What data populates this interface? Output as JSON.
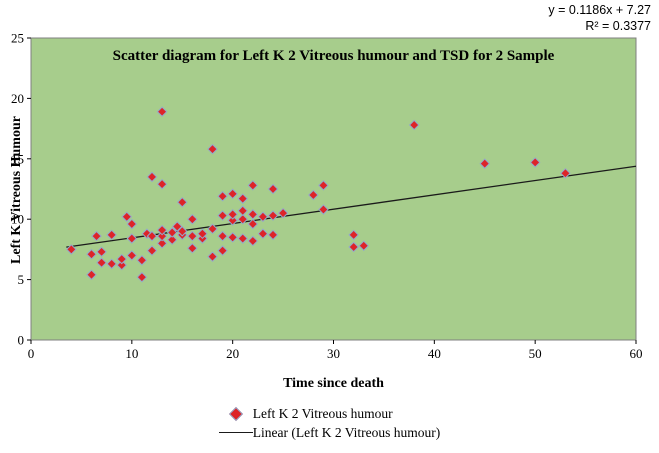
{
  "chart_data": {
    "type": "scatter",
    "title": "Scatter diagram for Left K 2 Vitreous humour and TSD for 2 Sample",
    "xlabel": "Time since death",
    "ylabel": "Left K Vitreous Humour",
    "xlim": [
      0,
      60
    ],
    "ylim": [
      0,
      25
    ],
    "x_ticks": [
      0,
      10,
      20,
      30,
      40,
      50,
      60
    ],
    "y_ticks": [
      0,
      5,
      10,
      15,
      20,
      25
    ],
    "grid": false,
    "legend_position": "bottom",
    "annotation": {
      "equation": "y = 0.1186x + 7.27",
      "r_squared": "R² = 0.3377"
    },
    "legend": [
      "Left K 2 Vitreous humour",
      "Linear (Left K 2 Vitreous humour)"
    ],
    "trendline": {
      "slope": 0.1186,
      "intercept": 7.27,
      "x_start": 3.5,
      "x_end": 60
    },
    "colors": {
      "plot_bg": "#a7cd8c",
      "plot_border": "#7f7f7f",
      "marker_fill": "#dd2428",
      "marker_stroke": "#93a9cc",
      "trendline": "#1a1a1a"
    },
    "points": [
      [
        4,
        7.5
      ],
      [
        6,
        5.4
      ],
      [
        6,
        7.1
      ],
      [
        6.5,
        8.6
      ],
      [
        7,
        6.4
      ],
      [
        7,
        7.3
      ],
      [
        8,
        6.3
      ],
      [
        8,
        8.7
      ],
      [
        9,
        6.2
      ],
      [
        9,
        6.7
      ],
      [
        9.5,
        10.2
      ],
      [
        10,
        7.0
      ],
      [
        10,
        8.4
      ],
      [
        10,
        9.6
      ],
      [
        11,
        5.2
      ],
      [
        11,
        6.6
      ],
      [
        11.5,
        8.8
      ],
      [
        12,
        7.4
      ],
      [
        12,
        8.6
      ],
      [
        12,
        13.5
      ],
      [
        13,
        8.0
      ],
      [
        13,
        8.6
      ],
      [
        13,
        9.1
      ],
      [
        13,
        12.9
      ],
      [
        13,
        18.9
      ],
      [
        14,
        8.3
      ],
      [
        14,
        8.9
      ],
      [
        14.5,
        9.4
      ],
      [
        15,
        8.7
      ],
      [
        15,
        9.0
      ],
      [
        15,
        11.4
      ],
      [
        16,
        7.6
      ],
      [
        16,
        8.6
      ],
      [
        16,
        10.0
      ],
      [
        17,
        8.4
      ],
      [
        17,
        8.8
      ],
      [
        18,
        6.9
      ],
      [
        18,
        9.2
      ],
      [
        18,
        15.8
      ],
      [
        19,
        7.4
      ],
      [
        19,
        8.6
      ],
      [
        19,
        10.3
      ],
      [
        19,
        11.9
      ],
      [
        20,
        8.5
      ],
      [
        20,
        9.9
      ],
      [
        20,
        10.4
      ],
      [
        20,
        12.1
      ],
      [
        21,
        8.4
      ],
      [
        21,
        10.0
      ],
      [
        21,
        10.7
      ],
      [
        21,
        11.7
      ],
      [
        22,
        8.2
      ],
      [
        22,
        9.6
      ],
      [
        22,
        10.4
      ],
      [
        22,
        12.8
      ],
      [
        23,
        8.8
      ],
      [
        23,
        10.2
      ],
      [
        24,
        8.7
      ],
      [
        24,
        10.3
      ],
      [
        24,
        12.5
      ],
      [
        25,
        10.5
      ],
      [
        28,
        12.0
      ],
      [
        29,
        10.8
      ],
      [
        29,
        12.8
      ],
      [
        32,
        7.7
      ],
      [
        32,
        8.7
      ],
      [
        33,
        7.8
      ],
      [
        38,
        17.8
      ],
      [
        45,
        14.6
      ],
      [
        50,
        14.7
      ],
      [
        53,
        13.8
      ]
    ]
  }
}
